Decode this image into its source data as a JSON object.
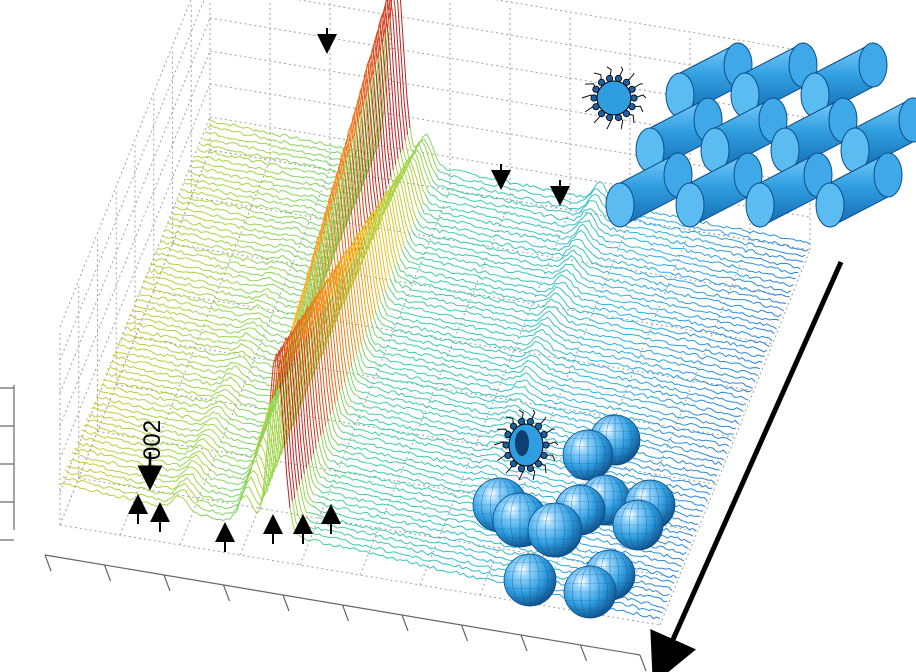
{
  "chart_data": {
    "type": "line",
    "style": "waterfall-3d",
    "title": "",
    "xlabel": "",
    "ylabel": "",
    "zlabel": "",
    "grid": true,
    "series_count": 64,
    "x": [
      0,
      0.05,
      0.1,
      0.15,
      0.2,
      0.25,
      0.3,
      0.35,
      0.4,
      0.45,
      0.5,
      0.55,
      0.6,
      0.65,
      0.7,
      0.75,
      0.8,
      0.85,
      0.9,
      0.95,
      1
    ],
    "series_profile": {
      "baseline": 0.12,
      "peaks": [
        {
          "x": 0.2,
          "height_front": 0.05,
          "height_back": 0.0
        },
        {
          "x": 0.31,
          "height_front": 0.1,
          "height_back": 0.65
        },
        {
          "x": 0.36,
          "height_front": 0.6,
          "height_back": 0.1
        },
        {
          "x": 0.65,
          "height_front": 0.0,
          "height_back": 0.06
        }
      ]
    },
    "colormap": [
      "#1f1fb4",
      "#2a6fd6",
      "#29b3e0",
      "#3ccfa0",
      "#9ad64a",
      "#f0c020",
      "#f07a14",
      "#c81e1e"
    ],
    "annotations": [
      {
        "text": "002",
        "kind": "label"
      }
    ],
    "peak_markers_front": 7,
    "peak_markers_back": 3,
    "series_direction_arrow": true
  },
  "insets": {
    "top_right": {
      "structure": "hexagonal-cylinders",
      "color": "#2f9ee0"
    },
    "bottom_right": {
      "structure": "packed-spheres",
      "color": "#2f9ee0"
    }
  }
}
